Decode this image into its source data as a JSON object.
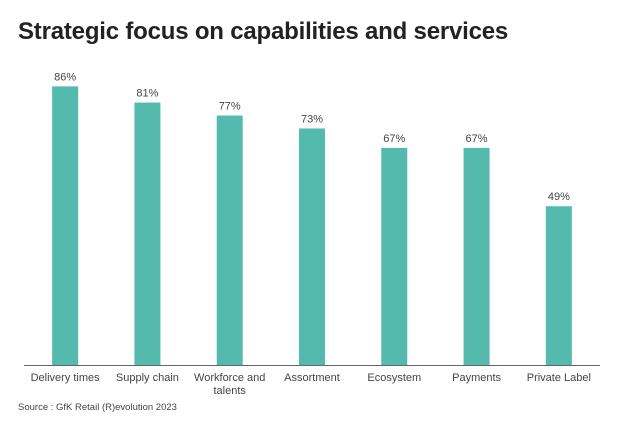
{
  "title": "Strategic focus on capabilities and services",
  "source": "Source : GfK Retail (R)evolution 2023",
  "colors": {
    "bar": "#55BAAE",
    "baseline": "#666666",
    "label": "#444444"
  },
  "chart_data": {
    "type": "bar",
    "title": "Strategic focus on capabilities and services",
    "categories": [
      [
        "Delivery times"
      ],
      [
        "Supply chain"
      ],
      [
        "Workforce and",
        "talents"
      ],
      [
        "Assortment"
      ],
      [
        "Ecosystem"
      ],
      [
        "Payments"
      ],
      [
        "Private Label"
      ]
    ],
    "values": [
      86,
      81,
      77,
      73,
      67,
      67,
      49
    ],
    "value_labels": [
      "86%",
      "81%",
      "77%",
      "73%",
      "67%",
      "67%",
      "49%"
    ],
    "unit": "%",
    "ylim": [
      0,
      100
    ],
    "grid": false,
    "legend": "none",
    "xlabel": "",
    "ylabel": ""
  }
}
